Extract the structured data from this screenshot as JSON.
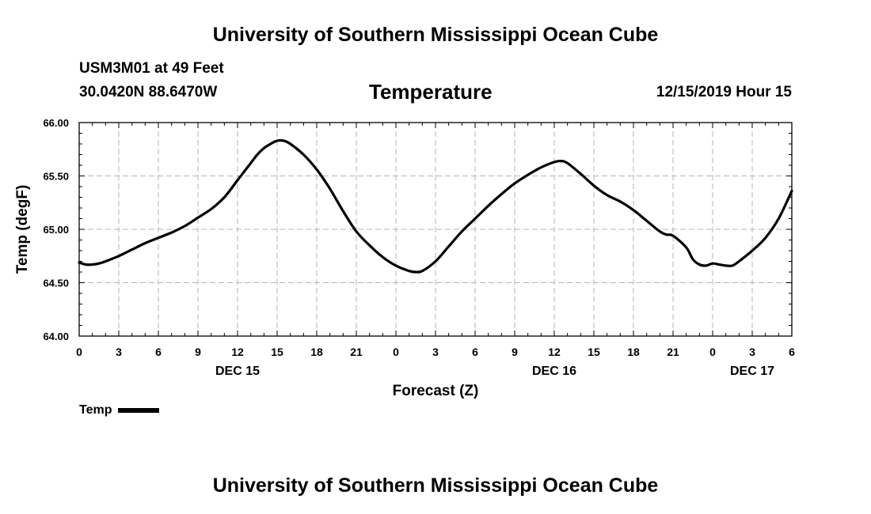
{
  "header": {
    "title": "University of Southern Mississippi Ocean Cube",
    "station": "USM3M01 at 49 Feet",
    "coordinates": "30.0420N 88.6470W",
    "parameter": "Temperature",
    "datetime": "12/15/2019 Hour 15"
  },
  "footer": {
    "title": "University of Southern Mississippi Ocean Cube"
  },
  "chart_data": {
    "type": "line",
    "title": "Temperature",
    "xlabel": "Forecast (Z)",
    "ylabel": "Temp (degF)",
    "xlim": [
      0,
      54
    ],
    "ylim": [
      64.0,
      66.0
    ],
    "yticks": [
      "64.00",
      "64.50",
      "65.00",
      "65.50",
      "66.00"
    ],
    "xticks": [
      {
        "h": 0,
        "label": "0"
      },
      {
        "h": 3,
        "label": "3"
      },
      {
        "h": 6,
        "label": "6"
      },
      {
        "h": 9,
        "label": "9"
      },
      {
        "h": 12,
        "label": "12"
      },
      {
        "h": 15,
        "label": "15"
      },
      {
        "h": 18,
        "label": "18"
      },
      {
        "h": 21,
        "label": "21"
      },
      {
        "h": 24,
        "label": "0"
      },
      {
        "h": 27,
        "label": "3"
      },
      {
        "h": 30,
        "label": "6"
      },
      {
        "h": 33,
        "label": "9"
      },
      {
        "h": 36,
        "label": "12"
      },
      {
        "h": 39,
        "label": "15"
      },
      {
        "h": 42,
        "label": "18"
      },
      {
        "h": 45,
        "label": "21"
      },
      {
        "h": 48,
        "label": "0"
      },
      {
        "h": 51,
        "label": "3"
      },
      {
        "h": 54,
        "label": "6"
      }
    ],
    "day_labels": [
      {
        "h": 12,
        "label": "DEC 15"
      },
      {
        "h": 36,
        "label": "DEC 16"
      },
      {
        "h": 51,
        "label": "DEC 17"
      }
    ],
    "grid": true,
    "legend_position": "bottom-left",
    "series": [
      {
        "name": "Temp",
        "color": "#000000",
        "x": [
          0,
          0.5,
          1,
          1.5,
          2,
          3,
          4,
          5,
          6,
          7,
          8,
          9,
          10,
          11,
          12,
          12.5,
          13,
          13.5,
          14,
          14.5,
          15,
          15.5,
          16,
          17,
          18,
          19,
          20,
          21,
          22,
          23,
          24,
          25,
          25.5,
          26,
          27,
          28,
          29,
          30,
          31,
          32,
          33,
          34,
          35,
          36,
          36.5,
          37,
          38,
          39,
          40,
          41,
          42,
          43,
          44,
          44.5,
          45,
          46,
          46.5,
          47,
          47.5,
          48,
          48.5,
          49,
          49.5,
          50,
          51,
          52,
          53,
          54
        ],
        "y": [
          64.69,
          64.67,
          64.67,
          64.68,
          64.7,
          64.75,
          64.81,
          64.87,
          64.92,
          64.97,
          65.03,
          65.11,
          65.19,
          65.3,
          65.46,
          65.54,
          65.62,
          65.7,
          65.76,
          65.8,
          65.83,
          65.83,
          65.8,
          65.7,
          65.56,
          65.38,
          65.17,
          64.98,
          64.85,
          64.74,
          64.66,
          64.61,
          64.6,
          64.61,
          64.7,
          64.84,
          64.98,
          65.1,
          65.22,
          65.33,
          65.43,
          65.51,
          65.58,
          65.63,
          65.64,
          65.62,
          65.52,
          65.41,
          65.32,
          65.26,
          65.18,
          65.08,
          64.98,
          64.95,
          64.94,
          64.83,
          64.72,
          64.67,
          64.66,
          64.68,
          64.67,
          64.66,
          64.66,
          64.7,
          64.8,
          64.92,
          65.1,
          65.36
        ]
      }
    ]
  }
}
